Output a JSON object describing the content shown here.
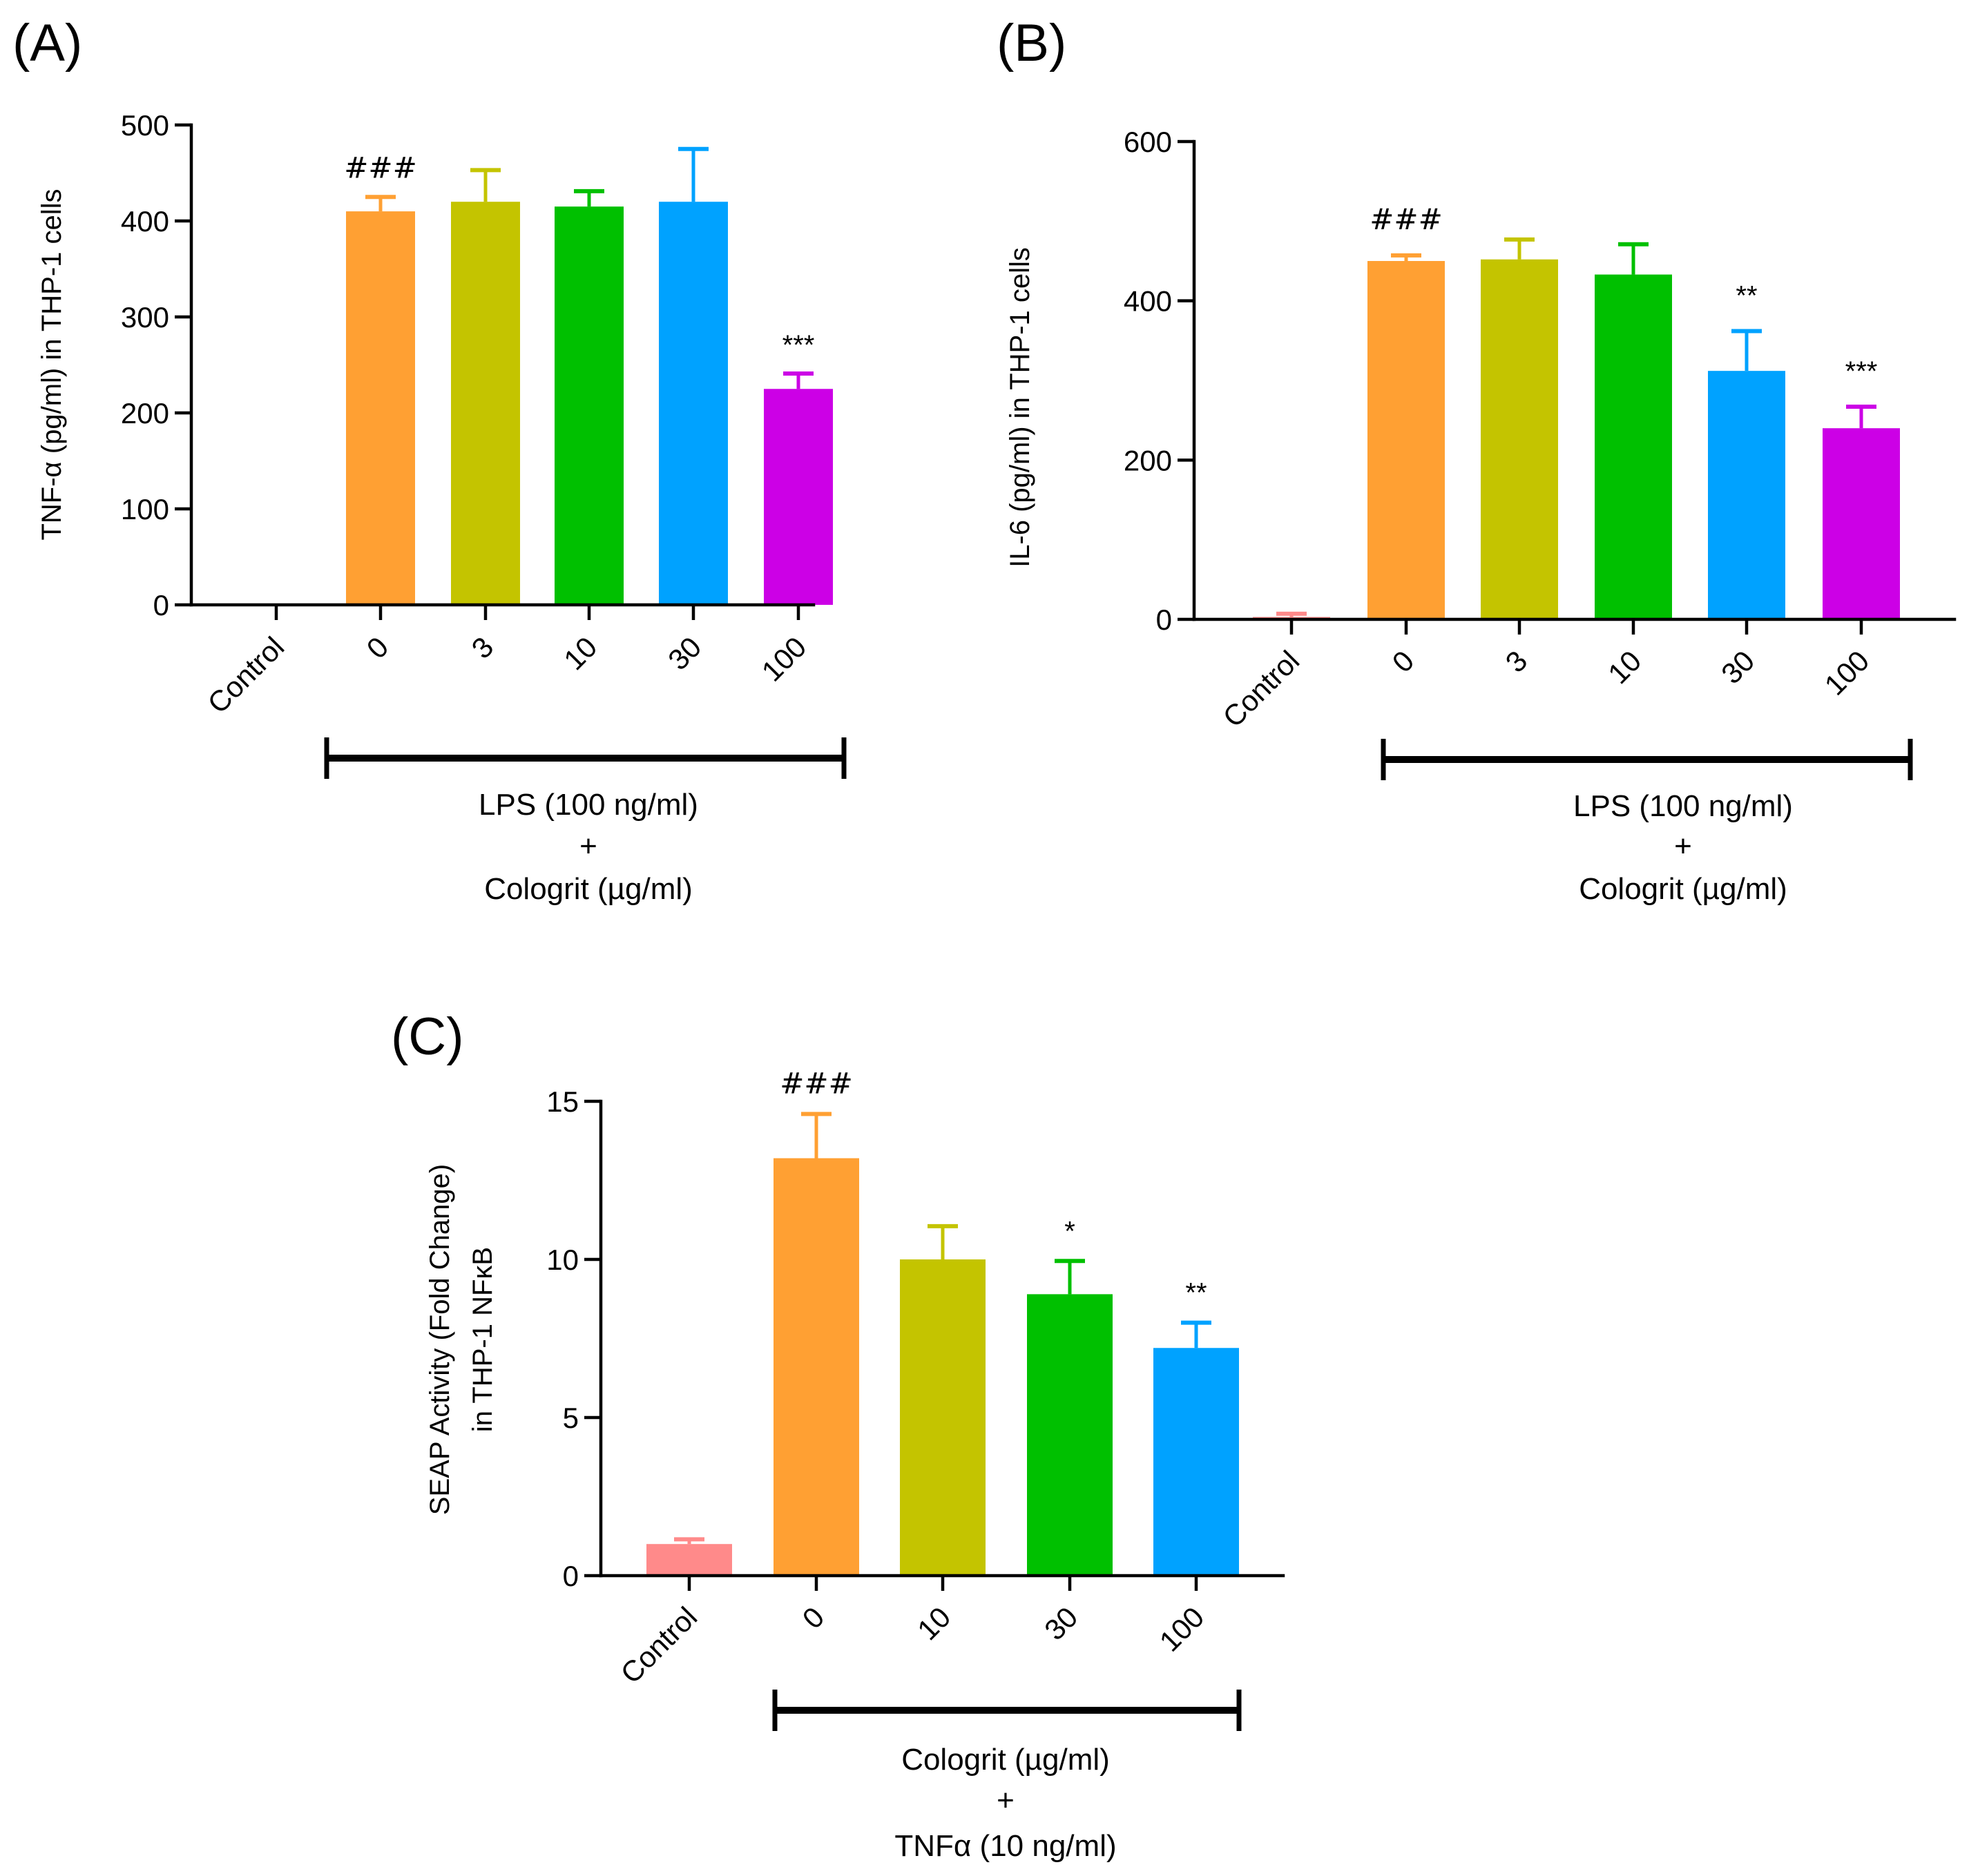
{
  "chart_data": [
    {
      "type": "bar",
      "panel_label": "(A)",
      "ylabel": "TNF-α (pg/ml) in  THP-1 cells",
      "ylim": [
        0,
        500
      ],
      "yticks": [
        0,
        100,
        200,
        300,
        400,
        500
      ],
      "categories": [
        "Control",
        "0",
        "3",
        "10",
        "30",
        "100"
      ],
      "values": [
        0,
        410,
        420,
        415,
        420,
        225
      ],
      "errors": [
        0,
        15,
        33,
        16,
        55,
        16
      ],
      "colors": [
        "#FF8A8A",
        "#FFA033",
        "#C4C400",
        "#00C000",
        "#00A2FF",
        "#CC00E6"
      ],
      "annotations": [
        "",
        "###",
        "",
        "",
        "",
        "***"
      ],
      "group_label": [
        "LPS (100 ng/ml)",
        "+",
        "Cologrit (µg/ml)"
      ]
    },
    {
      "type": "bar",
      "panel_label": "(B)",
      "ylabel": "IL-6 (pg/ml) in  THP-1 cells",
      "ylim": [
        0,
        600
      ],
      "yticks": [
        0,
        200,
        400,
        600
      ],
      "categories": [
        "Control",
        "0",
        "3",
        "10",
        "30",
        "100"
      ],
      "values": [
        3,
        450,
        452,
        433,
        312,
        240
      ],
      "errors": [
        4,
        7,
        25,
        38,
        50,
        27
      ],
      "colors": [
        "#FF8A8A",
        "#FFA033",
        "#C4C400",
        "#00C000",
        "#00A2FF",
        "#CC00E6"
      ],
      "annotations": [
        "",
        "###",
        "",
        "",
        "**",
        "***"
      ],
      "group_label": [
        "LPS (100 ng/ml)",
        "+",
        "Cologrit (µg/ml)"
      ]
    },
    {
      "type": "bar",
      "panel_label": "(C)",
      "ylabel": [
        "SEAP Activity (Fold Change)",
        "in  THP-1 NFκB"
      ],
      "ylim": [
        0,
        15
      ],
      "yticks": [
        0,
        5,
        10,
        15
      ],
      "categories": [
        "Control",
        "0",
        "10",
        "30",
        "100"
      ],
      "values": [
        1.0,
        13.2,
        10.0,
        8.9,
        7.2
      ],
      "errors": [
        0.15,
        1.4,
        1.05,
        1.05,
        0.8
      ],
      "colors": [
        "#FF8A8A",
        "#FFA033",
        "#C4C400",
        "#00C000",
        "#00A2FF"
      ],
      "annotations": [
        "",
        "###",
        "",
        "*",
        "**"
      ],
      "group_label": [
        "Cologrit (µg/ml)",
        "+",
        "TNFα (10 ng/ml)"
      ]
    }
  ]
}
